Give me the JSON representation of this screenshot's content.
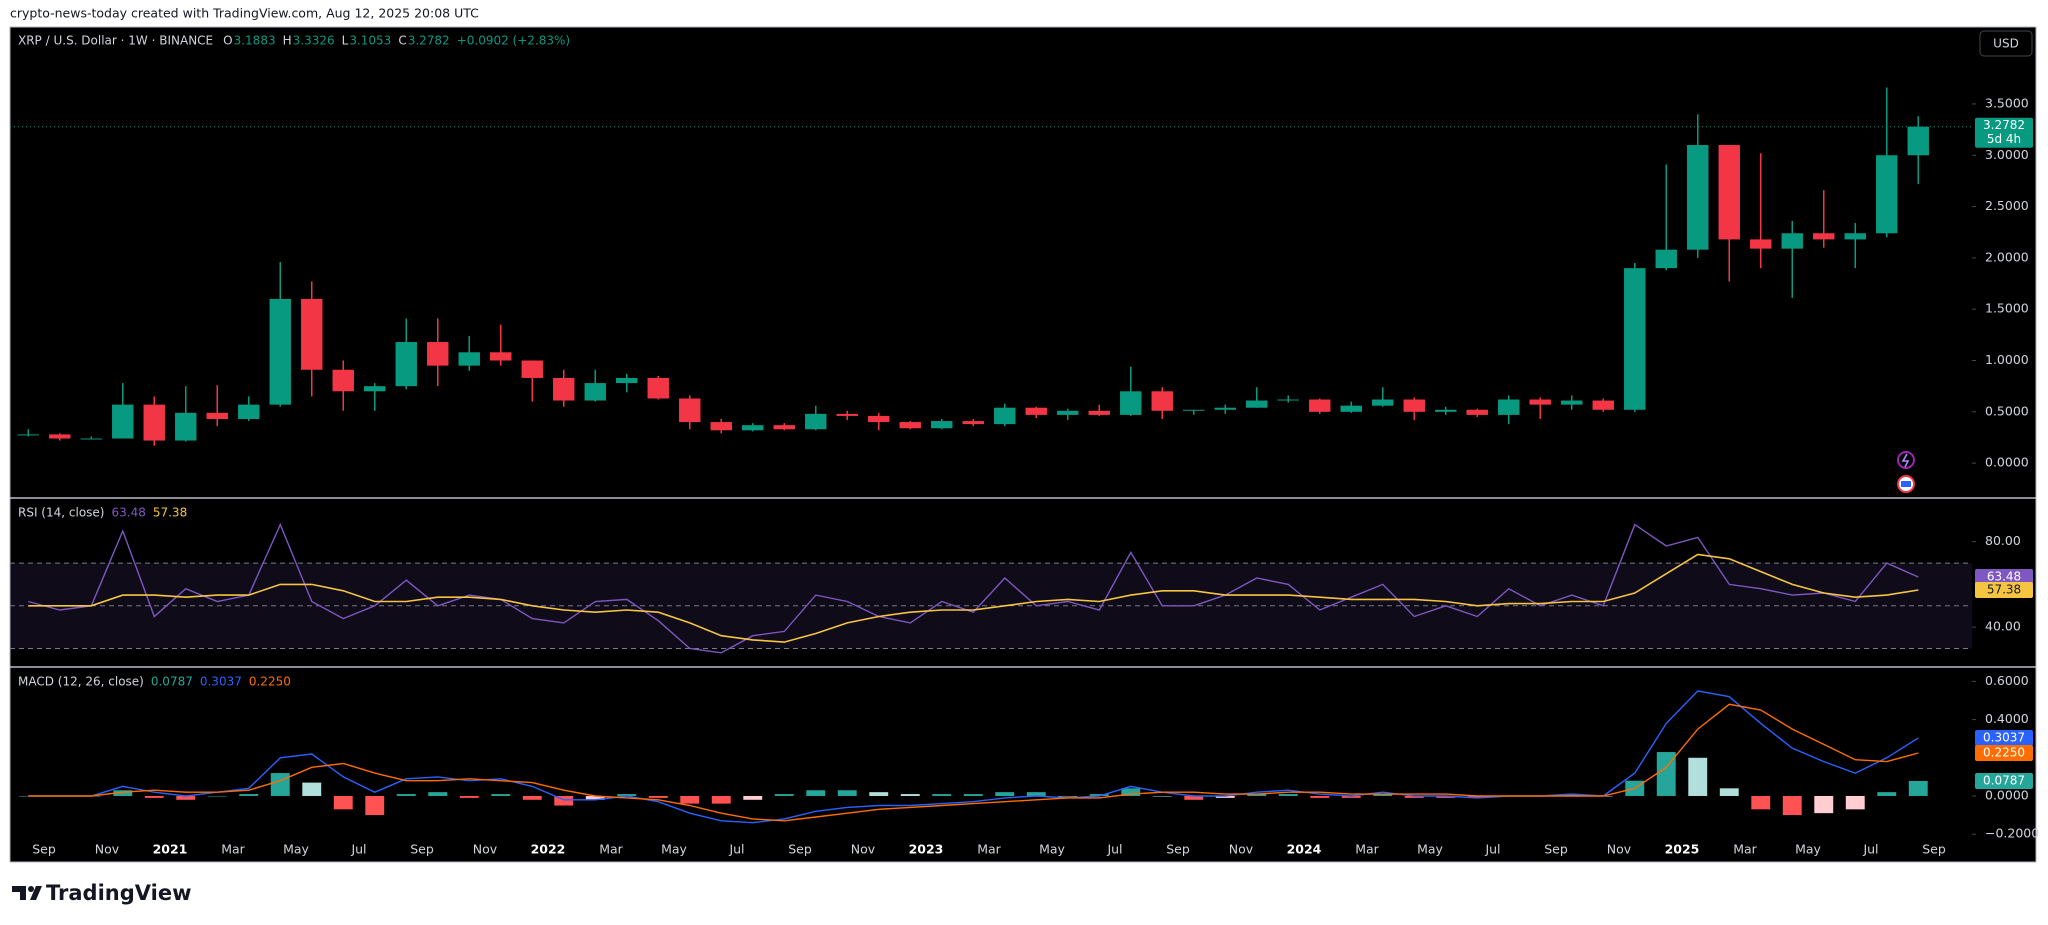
{
  "header": {
    "attribution": "crypto-news-today created with TradingView.com, Aug 12, 2025 20:08 UTC",
    "currency": "USD",
    "logo": "TradingView"
  },
  "chart_data": [
    {
      "type": "candlestick",
      "title": "XRP / U.S. Dollar · 1W · BINANCE",
      "ohlc_legend": [
        [
          "O",
          "3.1883"
        ],
        [
          "H",
          "3.3326"
        ],
        [
          "L",
          "3.1053"
        ],
        [
          "C",
          "3.2782"
        ]
      ],
      "change": "+0.0902 (+2.83%)",
      "countdown": "5d 4h",
      "categories": [
        null,
        "Sep",
        null,
        "Nov",
        null,
        "2021",
        null,
        "Mar",
        null,
        "May",
        null,
        "Jul",
        null,
        "Sep",
        null,
        "Nov",
        null,
        "2022",
        null,
        "Mar",
        null,
        "May",
        null,
        "Jul",
        null,
        "Sep",
        null,
        "Nov",
        null,
        "2023",
        null,
        "Mar",
        null,
        "May",
        null,
        "Jul",
        null,
        "Sep",
        null,
        "Nov",
        null,
        "2024",
        null,
        "Mar",
        null,
        "May",
        null,
        "Jul",
        null,
        "Sep",
        null,
        "Nov",
        null,
        "2025",
        null,
        "Mar",
        null,
        "May",
        null,
        "Jul",
        null,
        "Sep"
      ],
      "open": [
        0.28,
        0.28,
        0.24,
        0.24,
        0.57,
        0.22,
        0.49,
        0.43,
        0.57,
        1.6,
        0.91,
        0.7,
        0.75,
        1.18,
        0.95,
        1.08,
        1.0,
        0.83,
        0.61,
        0.78,
        0.83,
        0.63,
        0.4,
        0.32,
        0.37,
        0.33,
        0.48,
        0.46,
        0.4,
        0.34,
        0.41,
        0.38,
        0.54,
        0.47,
        0.51,
        0.47,
        0.7,
        0.51,
        0.52,
        0.54,
        0.61,
        0.62,
        0.5,
        0.56,
        0.62,
        0.5,
        0.52,
        0.47,
        0.62,
        0.57,
        0.61,
        0.52,
        1.9,
        2.08,
        3.1,
        2.18,
        2.09,
        2.24,
        2.18,
        2.24,
        3.0,
        null
      ],
      "high": [
        0.33,
        0.29,
        0.26,
        0.78,
        0.65,
        0.75,
        0.76,
        0.65,
        1.96,
        1.77,
        1.0,
        0.78,
        1.41,
        1.41,
        1.24,
        1.35,
        1.0,
        0.91,
        0.91,
        0.87,
        0.85,
        0.66,
        0.43,
        0.39,
        0.39,
        0.56,
        0.51,
        0.49,
        0.41,
        0.43,
        0.43,
        0.58,
        0.55,
        0.53,
        0.57,
        0.94,
        0.74,
        0.52,
        0.57,
        0.74,
        0.66,
        0.63,
        0.6,
        0.74,
        0.64,
        0.55,
        0.53,
        0.66,
        0.64,
        0.66,
        0.63,
        1.95,
        2.91,
        3.4,
        3.1,
        3.02,
        2.36,
        2.66,
        2.34,
        3.66,
        3.38,
        null
      ],
      "low": [
        0.26,
        0.22,
        0.23,
        0.24,
        0.17,
        0.21,
        0.36,
        0.41,
        0.55,
        0.65,
        0.51,
        0.51,
        0.72,
        0.75,
        0.9,
        0.95,
        0.6,
        0.55,
        0.6,
        0.69,
        0.62,
        0.33,
        0.29,
        0.31,
        0.32,
        0.32,
        0.42,
        0.32,
        0.33,
        0.33,
        0.36,
        0.36,
        0.44,
        0.42,
        0.46,
        0.46,
        0.43,
        0.47,
        0.48,
        0.54,
        0.59,
        0.48,
        0.49,
        0.55,
        0.42,
        0.47,
        0.45,
        0.38,
        0.43,
        0.52,
        0.5,
        0.5,
        1.88,
        2.0,
        1.77,
        1.9,
        1.61,
        2.1,
        1.9,
        2.2,
        2.72,
        null
      ],
      "close": [
        0.28,
        0.24,
        0.24,
        0.57,
        0.22,
        0.49,
        0.43,
        0.57,
        1.6,
        0.91,
        0.7,
        0.75,
        1.18,
        0.95,
        1.08,
        1.0,
        0.83,
        0.61,
        0.78,
        0.83,
        0.63,
        0.4,
        0.32,
        0.37,
        0.33,
        0.48,
        0.46,
        0.4,
        0.34,
        0.41,
        0.38,
        0.54,
        0.47,
        0.51,
        0.47,
        0.7,
        0.51,
        0.52,
        0.54,
        0.61,
        0.62,
        0.5,
        0.56,
        0.62,
        0.5,
        0.52,
        0.47,
        0.62,
        0.57,
        0.61,
        0.52,
        1.9,
        2.08,
        3.1,
        2.18,
        2.09,
        2.24,
        2.18,
        2.24,
        3.0,
        3.2782,
        null
      ],
      "up_color": "#089981",
      "down_color": "#f23645",
      "ylim": [
        -0.33,
        4.24
      ],
      "yticks": [
        {
          "value": 0,
          "label": "0.0000"
        },
        {
          "value": 0.5,
          "label": "0.5000"
        },
        {
          "value": 1,
          "label": "1.0000"
        },
        {
          "value": 1.5,
          "label": "1.5000"
        },
        {
          "value": 2,
          "label": "2.0000"
        },
        {
          "value": 2.5,
          "label": "2.5000"
        },
        {
          "value": 3,
          "label": "3.0000"
        },
        {
          "value": 3.5,
          "label": "3.5000"
        }
      ],
      "grid": false
    },
    {
      "type": "line",
      "title": "RSI (14, close)",
      "series": [
        {
          "color": "#7e57c2",
          "values": [
            52,
            48,
            50,
            85,
            45,
            58,
            52,
            55,
            88,
            52,
            44,
            50,
            62,
            50,
            55,
            53,
            44,
            42,
            52,
            53,
            43,
            30,
            28,
            36,
            38,
            55,
            52,
            45,
            42,
            52,
            47,
            63,
            50,
            52,
            48,
            75,
            50,
            50,
            55,
            63,
            60,
            48,
            54,
            60,
            45,
            50,
            45,
            58,
            50,
            55,
            50,
            88,
            78,
            82,
            60,
            58,
            55,
            56,
            52,
            70,
            63.48,
            null
          ]
        },
        {
          "color": "#f5c542",
          "values": [
            50,
            50,
            50,
            55,
            55,
            54,
            55,
            55,
            60,
            60,
            57,
            52,
            52,
            54,
            54,
            53,
            50,
            48,
            47,
            48,
            47,
            42,
            36,
            34,
            33,
            37,
            42,
            45,
            47,
            48,
            48,
            50,
            52,
            53,
            52,
            55,
            57,
            57,
            55,
            55,
            55,
            54,
            53,
            53,
            53,
            52,
            50,
            51,
            51,
            52,
            52,
            56,
            65,
            74,
            72,
            66,
            60,
            56,
            54,
            55,
            57.38,
            null
          ]
        }
      ],
      "levels": [
        70,
        50,
        30
      ],
      "ylim": [
        21.8,
        100
      ],
      "yticks": [
        {
          "value": 40,
          "label": "40.00"
        },
        {
          "value": 80,
          "label": "80.00"
        }
      ]
    },
    {
      "type": "macd",
      "title": "MACD (12, 26, close)",
      "histogram": {
        "values": [
          0,
          0,
          0,
          0.03,
          -0.01,
          -0.02,
          0,
          0.01,
          0.12,
          0.07,
          -0.07,
          -0.1,
          0.01,
          0.02,
          -0.01,
          0.01,
          -0.02,
          -0.05,
          -0.02,
          0.01,
          -0.01,
          -0.04,
          -0.04,
          -0.02,
          0.01,
          0.03,
          0.03,
          0.02,
          0.01,
          0.01,
          0.01,
          0.02,
          0.02,
          0,
          0.01,
          0.04,
          0,
          -0.02,
          -0.01,
          0.01,
          0.01,
          -0.01,
          -0.01,
          0.01,
          -0.01,
          -0.01,
          -0.01,
          0,
          0,
          0.01,
          0,
          0.08,
          0.23,
          0.2,
          0.04,
          -0.07,
          -0.1,
          -0.09,
          -0.07,
          0.02,
          0.0787,
          null
        ],
        "colors": {
          "up": "#26a69a",
          "up_fading": "#b2dfdb",
          "down": "#ff5252",
          "down_fading": "#ffcdd2"
        }
      },
      "series": [
        {
          "color": "#2962ff",
          "values": [
            0,
            0,
            0,
            0.05,
            0.02,
            0,
            0.02,
            0.04,
            0.2,
            0.22,
            0.1,
            0.02,
            0.09,
            0.1,
            0.08,
            0.09,
            0.05,
            -0.02,
            -0.02,
            0,
            -0.03,
            -0.09,
            -0.13,
            -0.14,
            -0.12,
            -0.08,
            -0.06,
            -0.05,
            -0.05,
            -0.04,
            -0.03,
            -0.01,
            0,
            -0.01,
            0,
            0.05,
            0.02,
            0,
            0,
            0.02,
            0.03,
            0.01,
            0,
            0.02,
            0,
            0,
            -0.01,
            0,
            0,
            0.01,
            0,
            0.12,
            0.38,
            0.55,
            0.52,
            0.38,
            0.25,
            0.18,
            0.12,
            0.2,
            0.3037,
            null
          ]
        },
        {
          "color": "#ff6d00",
          "values": [
            0,
            0,
            0,
            0.02,
            0.03,
            0.02,
            0.02,
            0.03,
            0.08,
            0.15,
            0.17,
            0.12,
            0.08,
            0.08,
            0.09,
            0.08,
            0.07,
            0.03,
            0,
            -0.01,
            -0.02,
            -0.05,
            -0.09,
            -0.12,
            -0.13,
            -0.11,
            -0.09,
            -0.07,
            -0.06,
            -0.05,
            -0.04,
            -0.03,
            -0.02,
            -0.01,
            -0.01,
            0.01,
            0.02,
            0.02,
            0.01,
            0.01,
            0.02,
            0.02,
            0.01,
            0.01,
            0.01,
            0.01,
            0,
            0,
            0,
            0,
            0,
            0.04,
            0.15,
            0.35,
            0.48,
            0.45,
            0.35,
            0.27,
            0.19,
            0.18,
            0.225,
            null
          ],
          "value_labels": [
            null,
            null,
            null,
            null,
            null,
            null,
            null,
            null,
            null,
            null,
            null,
            null,
            null,
            null,
            null,
            null,
            null,
            null,
            null,
            null,
            null,
            null,
            null,
            null,
            null,
            null,
            null,
            null,
            null,
            null,
            null,
            null,
            null,
            null,
            null,
            null,
            null,
            null,
            null,
            null,
            null,
            null,
            null,
            null,
            null,
            null,
            null,
            null,
            null,
            null,
            null,
            null,
            null,
            null,
            null,
            null,
            null,
            null,
            null,
            null,
            "0.2250",
            null
          ]
        }
      ],
      "ylim": [
        -0.22,
        0.67
      ],
      "yticks": [
        {
          "value": -0.2,
          "label": "−0.2000"
        },
        {
          "value": 0,
          "label": "0.0000"
        },
        {
          "value": 0.4,
          "label": "0.4000"
        },
        {
          "value": 0.6,
          "label": "0.6000"
        }
      ]
    }
  ]
}
